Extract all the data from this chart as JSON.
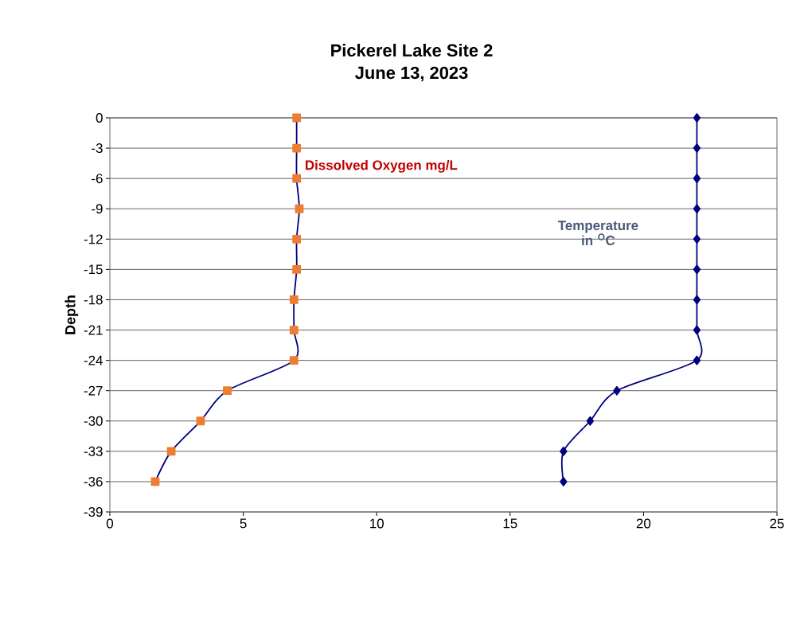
{
  "chart_data": {
    "type": "line",
    "title": "Pickerel Lake Site 2",
    "subtitle": "June 13, 2023",
    "ylabel": "Depth",
    "xlim": [
      0,
      25
    ],
    "xticks": [
      0,
      5,
      10,
      15,
      20,
      25
    ],
    "ylim": [
      -39,
      0
    ],
    "yticks": [
      0,
      -3,
      -6,
      -9,
      -12,
      -15,
      -18,
      -21,
      -24,
      -27,
      -30,
      -33,
      -36,
      -39
    ],
    "grid": "y",
    "line_style": "solid",
    "series": [
      {
        "name": "Dissolved Oxygen mg/L",
        "color": "#ed7d31",
        "marker": "square",
        "x": [
          7.0,
          7.0,
          7.0,
          7.1,
          7.0,
          7.0,
          6.9,
          6.9,
          6.9,
          4.4,
          3.4,
          2.3,
          1.7
        ],
        "values": [
          0,
          -3,
          -6,
          -9,
          -12,
          -15,
          -18,
          -21,
          -24,
          -27,
          -30,
          -33,
          -36
        ]
      },
      {
        "name": "Temperature in $^{O}$C",
        "color": "#000080",
        "marker": "diamond",
        "x": [
          22,
          22,
          22,
          22,
          22,
          22,
          22,
          22,
          22,
          19,
          18,
          17,
          17
        ],
        "values": [
          0,
          -3,
          -6,
          -9,
          -12,
          -15,
          -18,
          -21,
          -24,
          -27,
          -30,
          -33,
          -36
        ]
      }
    ]
  }
}
